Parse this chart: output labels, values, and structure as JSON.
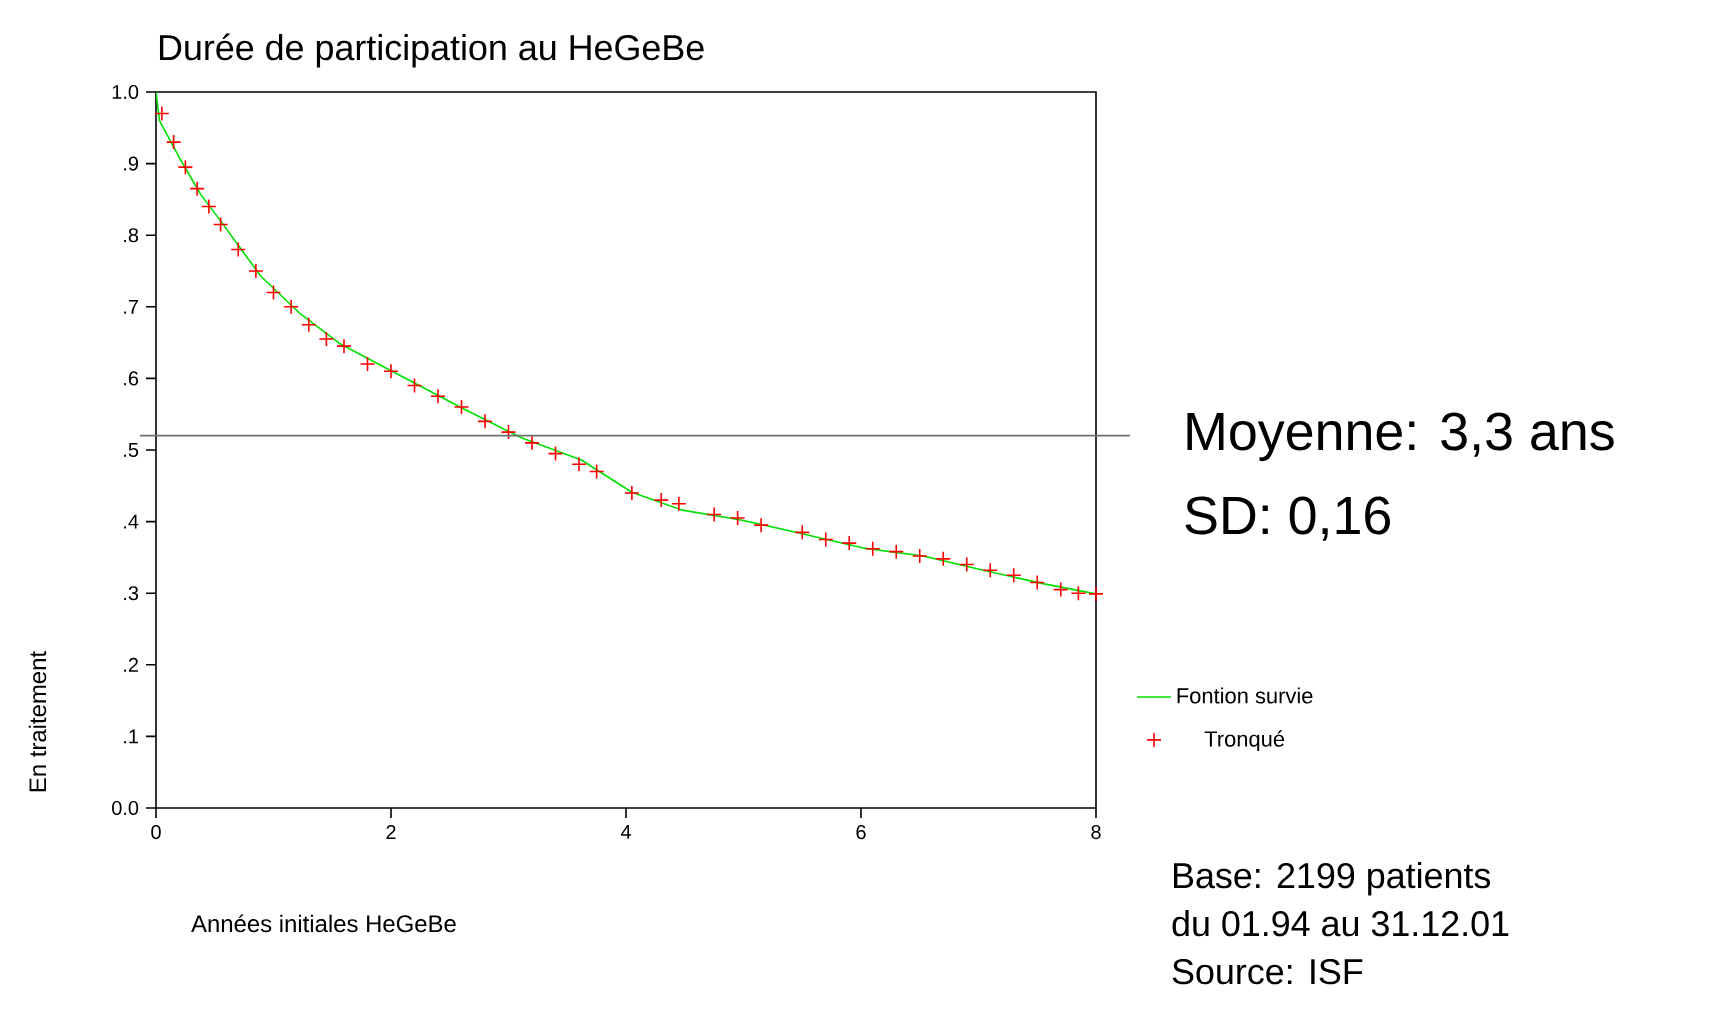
{
  "chart_data": {
    "type": "line",
    "title": "Durée de participation au HeGeBe",
    "xlabel": "Années initiales HeGeBe",
    "ylabel": "En traitement",
    "xlim": [
      0,
      8
    ],
    "xticks": [
      0,
      2,
      4,
      6,
      8
    ],
    "ylim": [
      0,
      1
    ],
    "yticks": [
      {
        "value": 0,
        "label": "0.0"
      },
      {
        "value": 0.1,
        "label": ".1"
      },
      {
        "value": 0.2,
        "label": ".2"
      },
      {
        "value": 0.3,
        "label": ".3"
      },
      {
        "value": 0.4,
        "label": ".4"
      },
      {
        "value": 0.5,
        "label": ".5"
      },
      {
        "value": 0.6,
        "label": ".6"
      },
      {
        "value": 0.7,
        "label": ".7"
      },
      {
        "value": 0.8,
        "label": ".8"
      },
      {
        "value": 0.9,
        "label": ".9"
      },
      {
        "value": 1,
        "label": "1.0"
      }
    ],
    "grid": false,
    "legend": "right",
    "series": [
      {
        "name": "Fontion survie",
        "color": "#00e000",
        "marker": "none",
        "x": [
          0,
          0.03,
          0.21,
          0.38,
          0.55,
          0.89,
          1.23,
          1.57,
          2.09,
          2.6,
          3.11,
          3.62,
          4.05,
          4.48,
          4.99,
          5.5,
          6.02,
          6.53,
          7.04,
          7.56,
          8.0
        ],
        "values": [
          1.0,
          0.96,
          0.905,
          0.857,
          0.82,
          0.743,
          0.69,
          0.648,
          0.603,
          0.559,
          0.517,
          0.486,
          0.441,
          0.416,
          0.402,
          0.383,
          0.363,
          0.352,
          0.332,
          0.313,
          0.299
        ]
      },
      {
        "name": "Tronqué",
        "type": "scatter",
        "color": "#ff0000",
        "marker": "cross",
        "x": [
          0.05,
          0.15,
          0.25,
          0.35,
          0.45,
          0.55,
          0.7,
          0.85,
          1.0,
          1.15,
          1.3,
          1.45,
          1.6,
          1.8,
          2.0,
          2.2,
          2.4,
          2.6,
          2.8,
          3.0,
          3.2,
          3.4,
          3.6,
          3.75,
          4.05,
          4.3,
          4.45,
          4.75,
          4.95,
          5.15,
          5.5,
          5.7,
          5.9,
          6.1,
          6.3,
          6.5,
          6.7,
          6.9,
          7.1,
          7.3,
          7.5,
          7.7,
          7.85,
          8.0
        ],
        "values": [
          0.97,
          0.93,
          0.895,
          0.865,
          0.84,
          0.815,
          0.78,
          0.75,
          0.72,
          0.7,
          0.675,
          0.655,
          0.645,
          0.62,
          0.61,
          0.59,
          0.575,
          0.56,
          0.54,
          0.525,
          0.51,
          0.495,
          0.48,
          0.47,
          0.44,
          0.43,
          0.425,
          0.41,
          0.405,
          0.395,
          0.385,
          0.375,
          0.37,
          0.362,
          0.358,
          0.352,
          0.348,
          0.34,
          0.332,
          0.325,
          0.315,
          0.305,
          0.3,
          0.299
        ]
      }
    ],
    "ref_lines": [
      {
        "axis": "y",
        "value": 0.52,
        "color": "#707070"
      }
    ],
    "annotations": [
      "Moyenne: 3,3 ans",
      "SD: 0,16",
      "Base: 2199 patients",
      "du 01.94 au 31.12.01",
      "Source: ISF"
    ]
  }
}
